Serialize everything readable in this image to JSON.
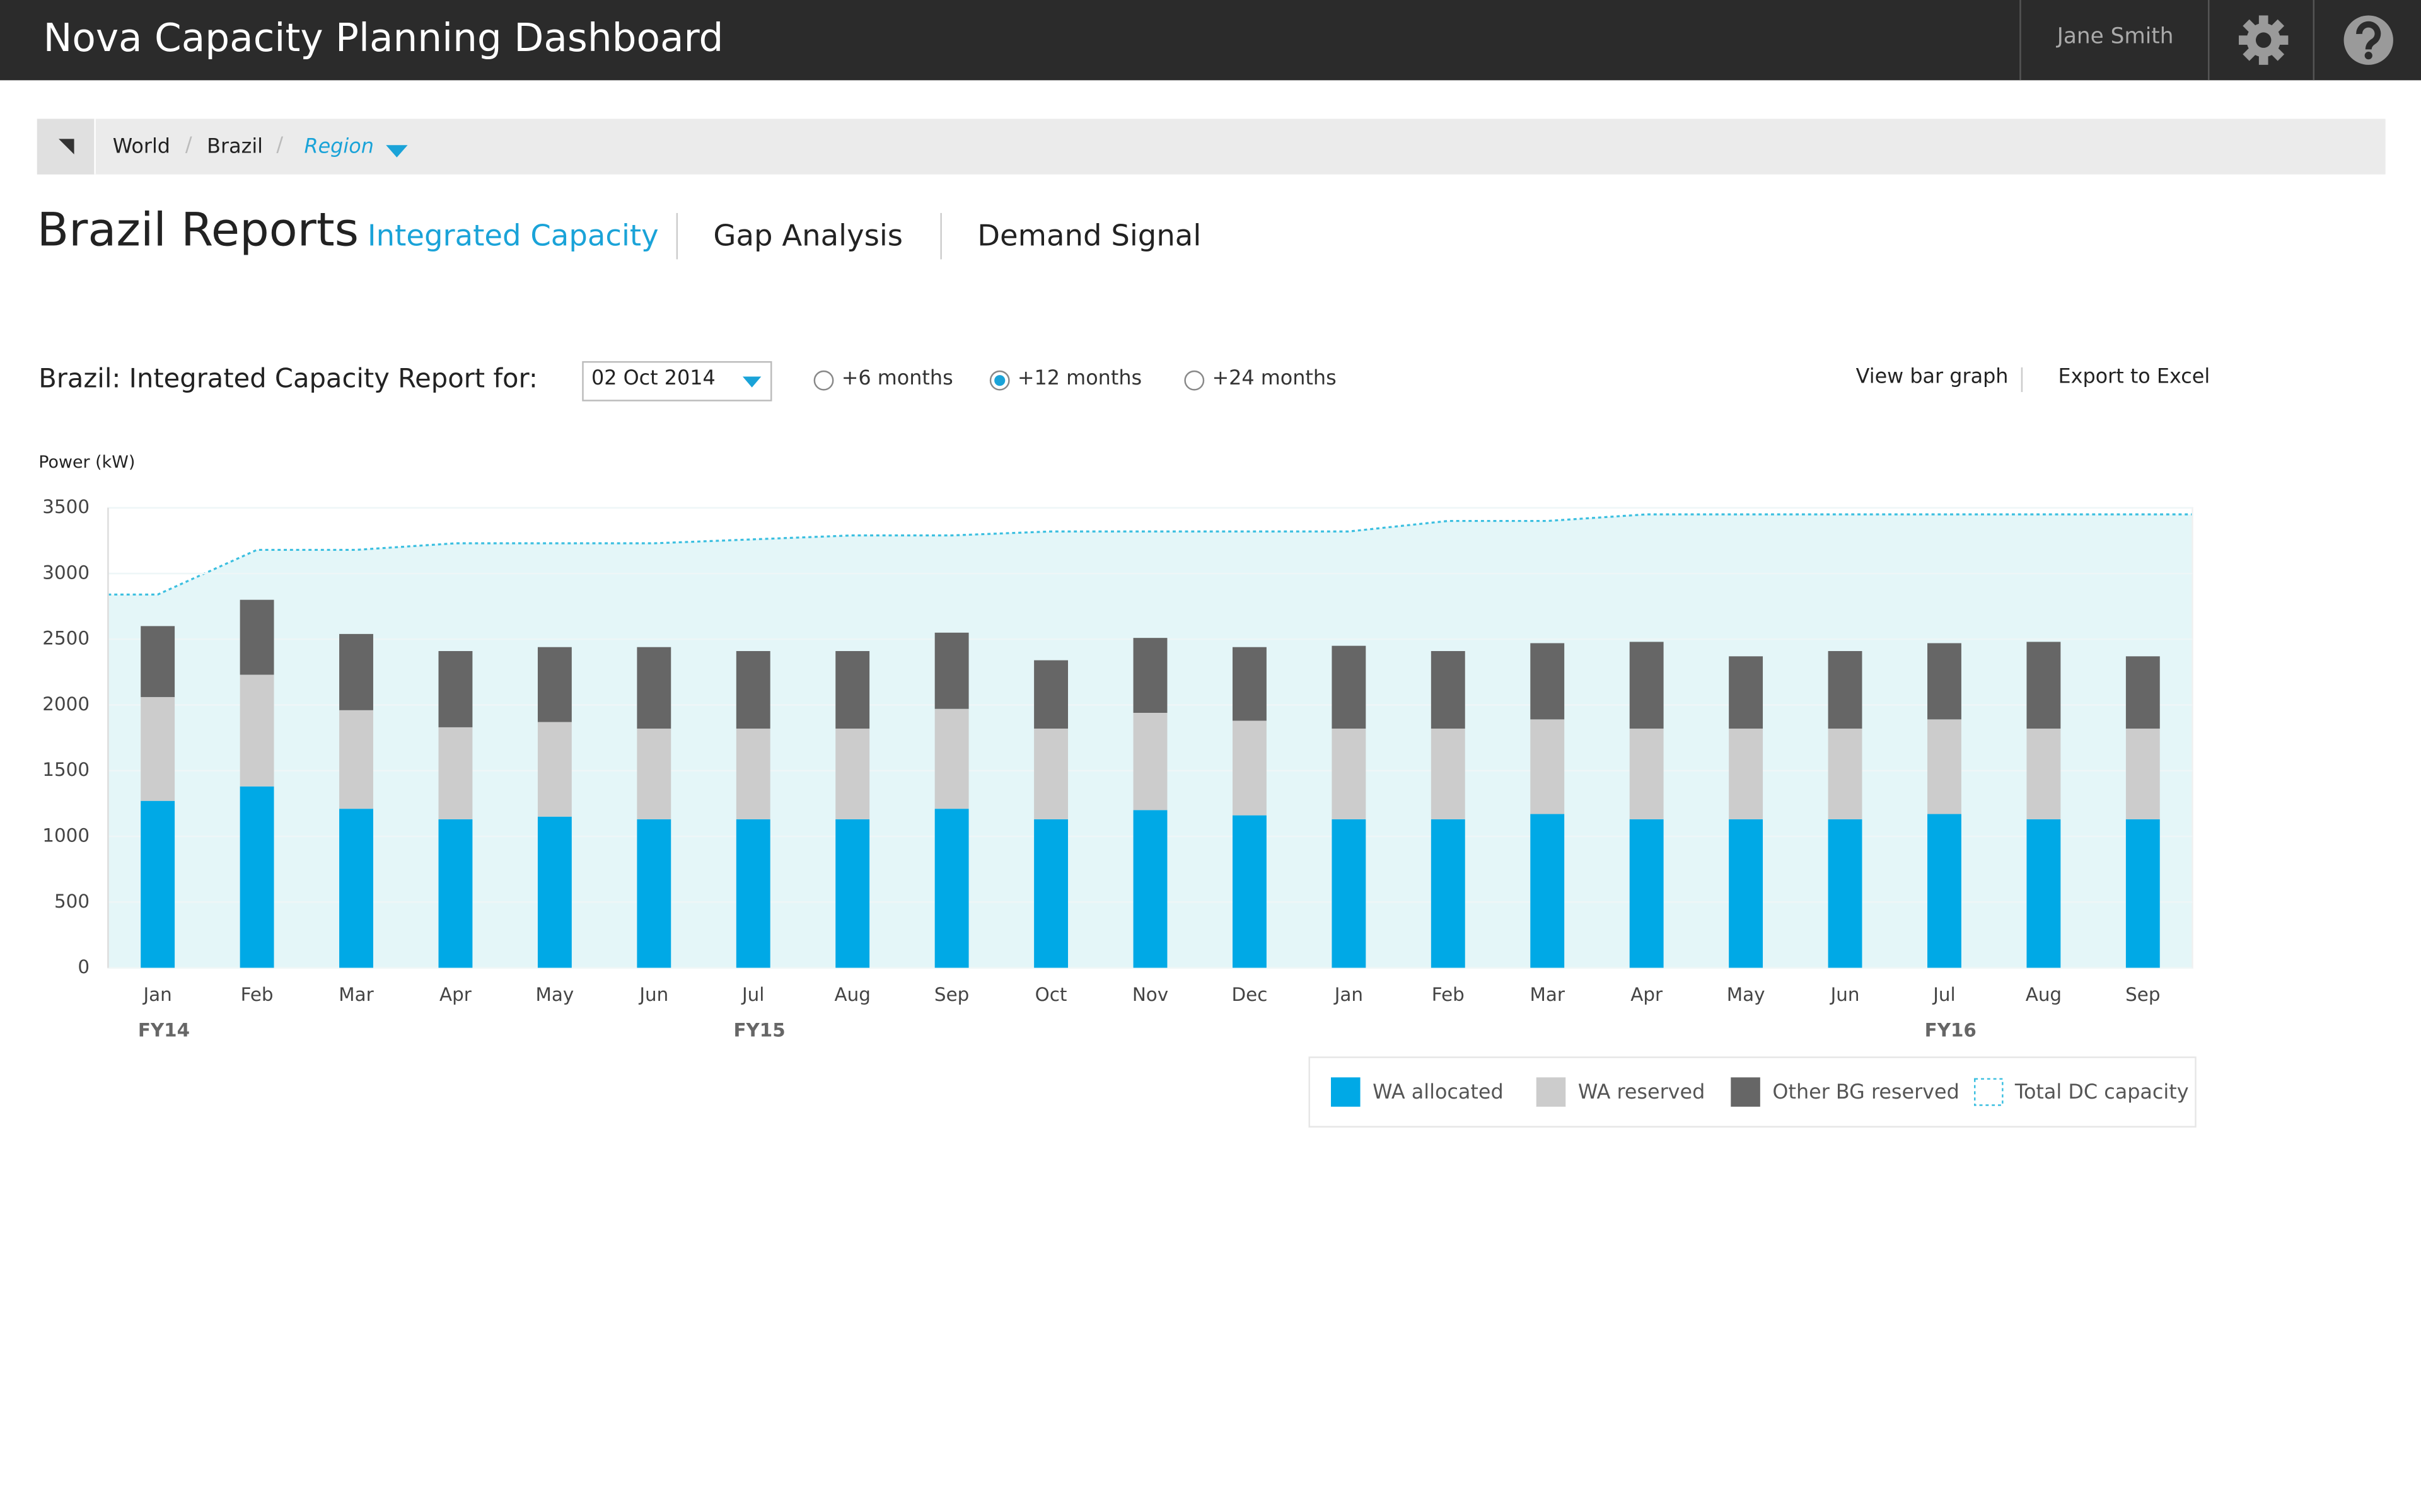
{
  "header": {
    "title": "Nova Capacity Planning Dashboard",
    "user": "Jane Smith"
  },
  "breadcrumb": [
    "World",
    "Brazil",
    "Region"
  ],
  "page": {
    "title": "Brazil Reports",
    "tabs": [
      "Integrated Capacity",
      "Gap Analysis",
      "Demand Signal"
    ],
    "active_tab": 0
  },
  "controls": {
    "report_label": "Brazil: Integrated Capacity Report for:",
    "date": "02 Oct 2014",
    "ranges": [
      "+6 months",
      "+12 months",
      "+24 months"
    ],
    "selected_range": 1,
    "links": [
      "View bar graph",
      "Export to Excel"
    ]
  },
  "chart_data": {
    "type": "bar",
    "stacked": true,
    "y_label": "Power (kW)",
    "categories": [
      "Jan",
      "Feb",
      "Mar",
      "Apr",
      "May",
      "Jun",
      "Jul",
      "Aug",
      "Sep",
      "Oct",
      "Nov",
      "Dec",
      "Jan",
      "Feb",
      "Mar",
      "Apr",
      "May",
      "Jun",
      "Jul",
      "Aug",
      "Sep"
    ],
    "fiscal_years": [
      "FY14",
      null,
      null,
      null,
      null,
      null,
      "FY15",
      null,
      null,
      null,
      null,
      null,
      null,
      null,
      null,
      null,
      null,
      null,
      "FY16",
      null,
      null
    ],
    "series": [
      {
        "name": "WA allocated",
        "color": "#00a9e6",
        "values": [
          1270,
          1380,
          1210,
          1130,
          1150,
          1130,
          1130,
          1130,
          1210,
          1130,
          1200,
          1160,
          1130,
          1130,
          1170,
          1130,
          1130,
          1130,
          1170,
          1130,
          1130
        ]
      },
      {
        "name": "WA reserved",
        "color": "#cccccc",
        "values": [
          790,
          850,
          750,
          700,
          720,
          690,
          690,
          690,
          760,
          690,
          740,
          720,
          690,
          690,
          720,
          690,
          690,
          690,
          720,
          690,
          690
        ]
      },
      {
        "name": "Other BG reserved",
        "color": "#666666",
        "values": [
          540,
          570,
          580,
          580,
          570,
          620,
          590,
          590,
          580,
          520,
          570,
          560,
          630,
          590,
          580,
          660,
          550,
          590,
          580,
          660,
          550
        ]
      },
      {
        "name": "Total DC capacity",
        "type": "line",
        "color": "#3bbfe0",
        "values": [
          2840,
          3180,
          3180,
          3230,
          3230,
          3230,
          3260,
          3290,
          3290,
          3320,
          3320,
          3320,
          3320,
          3400,
          3400,
          3450,
          3450,
          3450,
          3450,
          3450,
          3450
        ]
      }
    ],
    "ylim": [
      0,
      3500
    ],
    "yticks": [
      0,
      500,
      1000,
      1500,
      2000,
      2500,
      3000,
      3500
    ],
    "grid": true
  }
}
